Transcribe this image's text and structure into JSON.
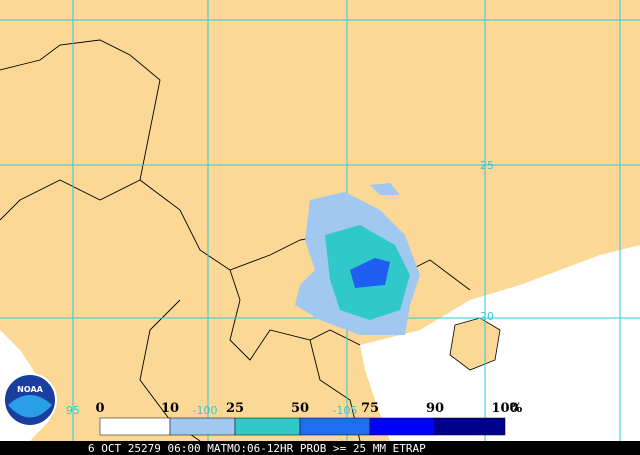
{
  "map": {
    "latitude_labels": [
      "25",
      "20"
    ],
    "longitude_labels": [
      "95",
      "-100",
      "-105"
    ],
    "legend": {
      "labels": [
        "0",
        "10",
        "25",
        "50",
        "75",
        "90",
        "100"
      ],
      "unit": "%"
    },
    "caption": "6 OCT 25279 06:00 MATMO:06-12HR PROB >= 25 MM ETRAP",
    "logo": "NOAA"
  }
}
